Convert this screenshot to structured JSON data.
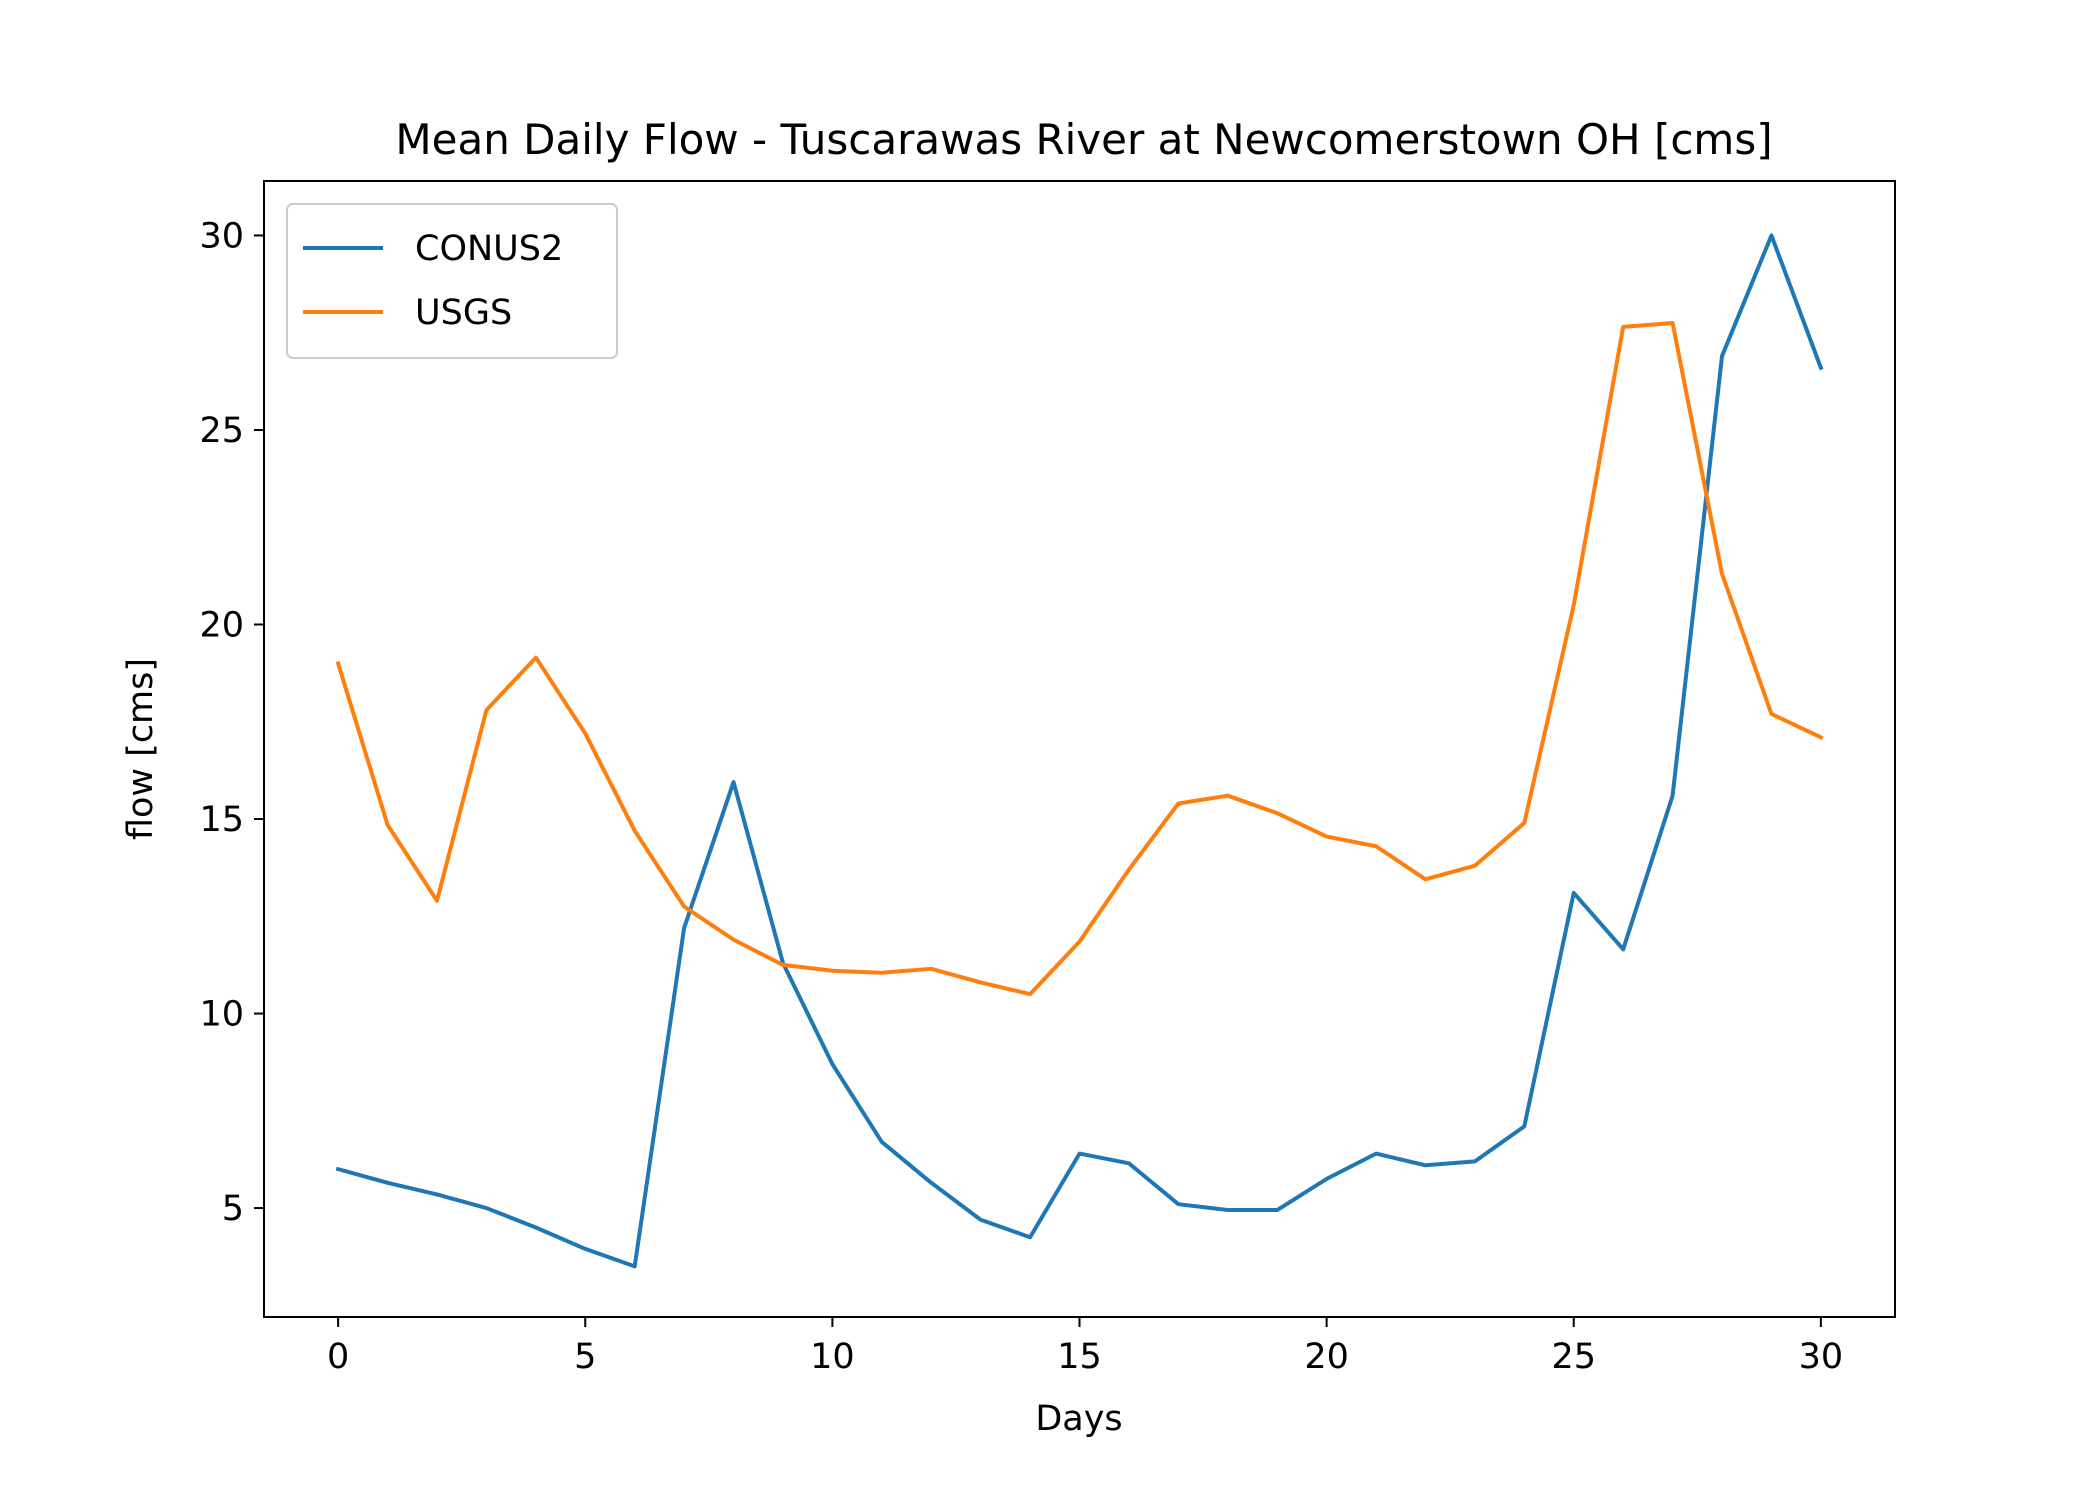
{
  "chart_data": {
    "type": "line",
    "title": "Mean Daily Flow - Tuscarawas River at Newcomerstown OH [cms]",
    "xlabel": "Days",
    "ylabel": "flow [cms]",
    "xlim": [
      -1.5,
      31.5
    ],
    "ylim": [
      2.2,
      31.4
    ],
    "x_ticks": [
      0,
      5,
      10,
      15,
      20,
      25,
      30
    ],
    "y_ticks": [
      5,
      10,
      15,
      20,
      25,
      30
    ],
    "grid": false,
    "legend_position": "top-left",
    "x": [
      0,
      1,
      2,
      3,
      4,
      5,
      6,
      7,
      8,
      9,
      10,
      11,
      12,
      13,
      14,
      15,
      16,
      17,
      18,
      19,
      20,
      21,
      22,
      23,
      24,
      25,
      26,
      27,
      28,
      29,
      30
    ],
    "series": [
      {
        "name": "CONUS2",
        "color": "#1f77b4",
        "values": [
          6.0,
          5.65,
          5.35,
          5.0,
          4.5,
          3.95,
          3.5,
          12.2,
          15.95,
          11.3,
          8.7,
          6.7,
          5.65,
          4.7,
          4.25,
          6.4,
          6.15,
          5.1,
          4.95,
          4.95,
          5.75,
          6.4,
          6.1,
          6.2,
          7.1,
          13.1,
          11.65,
          15.6,
          26.9,
          30.0,
          26.6
        ]
      },
      {
        "name": "USGS",
        "color": "#ff7f0e",
        "values": [
          19.0,
          14.85,
          12.9,
          17.8,
          19.15,
          17.2,
          14.7,
          12.75,
          11.9,
          11.25,
          11.1,
          11.05,
          11.15,
          10.8,
          10.5,
          11.85,
          13.7,
          15.4,
          15.6,
          15.15,
          14.55,
          14.3,
          13.45,
          13.8,
          14.9,
          20.5,
          27.65,
          27.75,
          21.3,
          17.7,
          17.1
        ]
      }
    ]
  }
}
